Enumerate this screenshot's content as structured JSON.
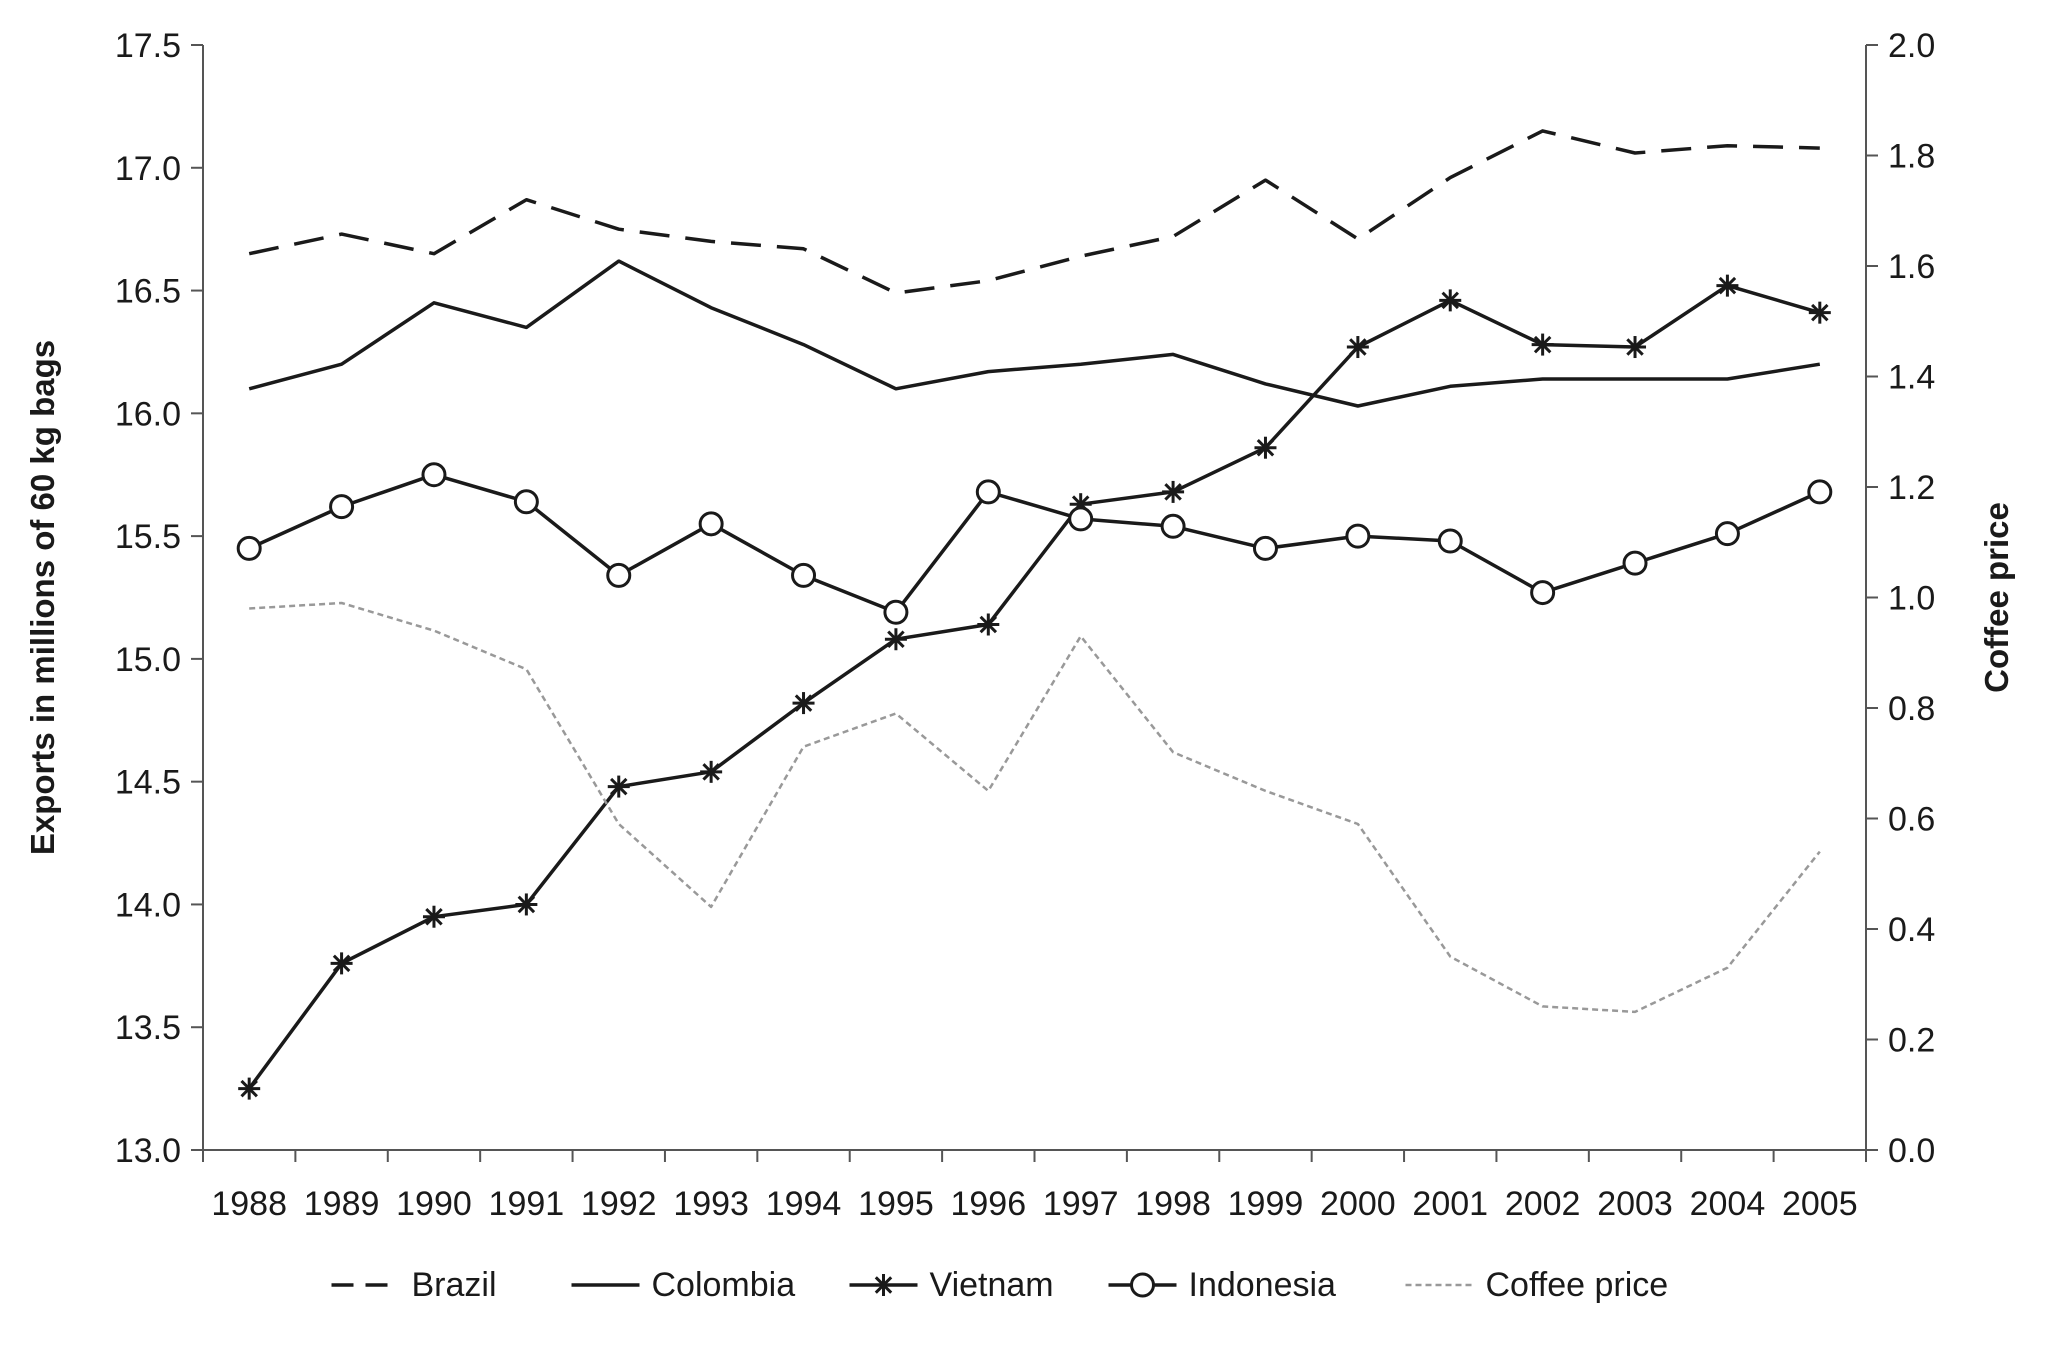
{
  "chart_data": {
    "type": "line",
    "title": "",
    "x": [
      "1988",
      "1989",
      "1990",
      "1991",
      "1992",
      "1993",
      "1994",
      "1995",
      "1996",
      "1997",
      "1998",
      "1999",
      "2000",
      "2001",
      "2002",
      "2003",
      "2004",
      "2005"
    ],
    "ylabel_left": "Exports in millions of 60 kg bags",
    "ylabel_right": "Coffee price",
    "ylim_left": [
      13.0,
      17.5
    ],
    "ylim_right": [
      0.0,
      2.0
    ],
    "yticks_left": [
      "13.0",
      "13.5",
      "14.0",
      "14.5",
      "15.0",
      "15.5",
      "16.0",
      "16.5",
      "17.0",
      "17.5"
    ],
    "yticks_right": [
      "0.0",
      "0.2",
      "0.4",
      "0.6",
      "0.8",
      "1.0",
      "1.2",
      "1.4",
      "1.6",
      "1.8",
      "2.0"
    ],
    "grid": false,
    "legend_position": "bottom",
    "series": [
      {
        "name": "Brazil",
        "axis": "left",
        "style": "dashed",
        "color": "#1a1a1a",
        "values": [
          16.65,
          16.73,
          16.65,
          16.87,
          16.75,
          16.7,
          16.67,
          16.49,
          16.54,
          16.64,
          16.72,
          16.95,
          16.71,
          16.96,
          17.15,
          17.06,
          17.09,
          17.08
        ]
      },
      {
        "name": "Colombia",
        "axis": "left",
        "style": "solid",
        "color": "#1a1a1a",
        "values": [
          16.1,
          16.2,
          16.45,
          16.35,
          16.62,
          16.43,
          16.28,
          16.1,
          16.17,
          16.2,
          16.24,
          16.12,
          16.03,
          16.11,
          16.14,
          16.14,
          16.14,
          16.2
        ]
      },
      {
        "name": "Vietnam",
        "axis": "left",
        "style": "solid-star",
        "color": "#1a1a1a",
        "values": [
          13.25,
          13.76,
          13.95,
          14.0,
          14.48,
          14.54,
          14.82,
          15.08,
          15.14,
          15.63,
          15.68,
          15.86,
          16.27,
          16.46,
          16.28,
          16.27,
          16.52,
          16.41
        ]
      },
      {
        "name": "Indonesia",
        "axis": "left",
        "style": "solid-circle",
        "color": "#1a1a1a",
        "values": [
          15.45,
          15.62,
          15.75,
          15.64,
          15.34,
          15.55,
          15.34,
          15.19,
          15.68,
          15.57,
          15.54,
          15.45,
          15.5,
          15.48,
          15.27,
          15.39,
          15.51,
          15.68
        ]
      },
      {
        "name": "Coffee price",
        "axis": "right",
        "style": "dotted",
        "color": "#999999",
        "values": [
          0.98,
          0.99,
          0.94,
          0.87,
          0.59,
          0.44,
          0.73,
          0.79,
          0.65,
          0.93,
          0.72,
          0.65,
          0.59,
          0.35,
          0.26,
          0.25,
          0.33,
          0.54
        ]
      }
    ]
  }
}
